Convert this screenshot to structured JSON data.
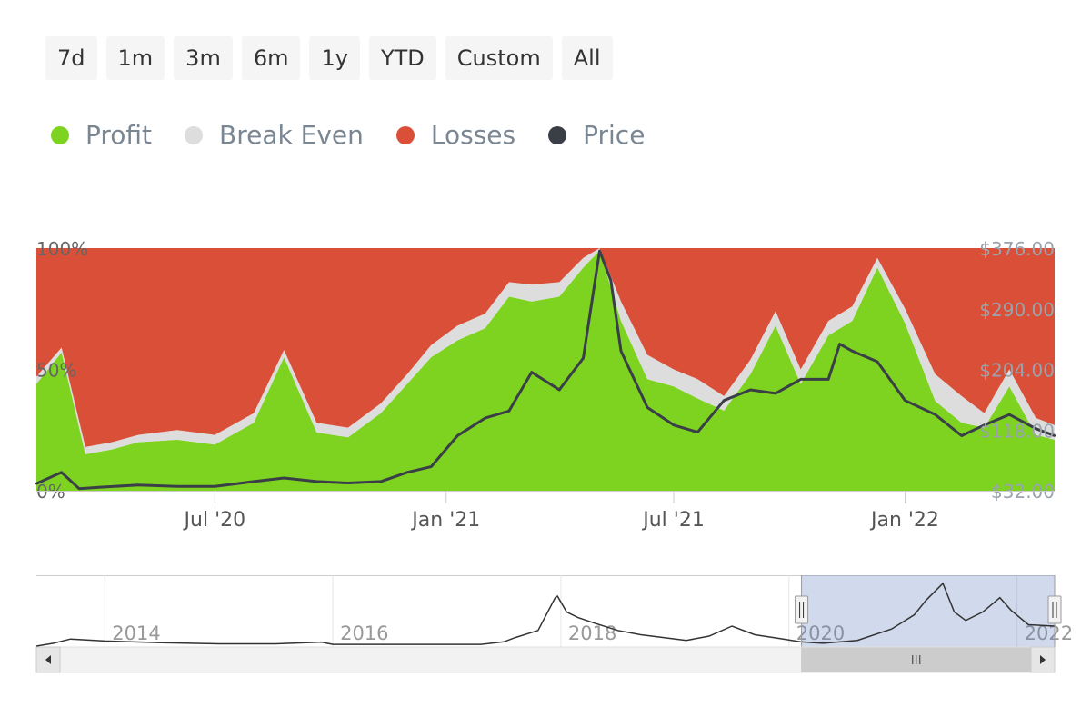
{
  "range_buttons": [
    "7d",
    "1m",
    "3m",
    "6m",
    "1y",
    "YTD",
    "Custom",
    "All"
  ],
  "legend": [
    {
      "label": "Profit",
      "color": "#7ed321"
    },
    {
      "label": "Break Even",
      "color": "#dddddd"
    },
    {
      "label": "Losses",
      "color": "#d94f38"
    },
    {
      "label": "Price",
      "color": "#3a3f47"
    }
  ],
  "chart_data": {
    "type": "area",
    "x_tick_labels": [
      "Jul '20",
      "Jan '21",
      "Jul '21",
      "Jan '22"
    ],
    "x_ticks": [
      "2020-07-01",
      "2021-01-01",
      "2021-07-01",
      "2022-01-01"
    ],
    "x_range": [
      "2020-02-10",
      "2022-04-30"
    ],
    "y_left_ticks": [
      "0%",
      "50%",
      "100%"
    ],
    "y_left_range": [
      0,
      100
    ],
    "y_right_ticks": [
      "$32.00",
      "$118.00",
      "$204.00",
      "$290.00",
      "$376.00"
    ],
    "y_right_range": [
      32,
      376
    ],
    "series": [
      {
        "name": "Profit",
        "color": "#7ed321",
        "unit": "%",
        "x": [
          "2020-02-10",
          "2020-03-01",
          "2020-03-20",
          "2020-04-10",
          "2020-05-01",
          "2020-06-01",
          "2020-07-01",
          "2020-08-01",
          "2020-08-25",
          "2020-09-20",
          "2020-10-15",
          "2020-11-10",
          "2020-12-01",
          "2020-12-20",
          "2021-01-10",
          "2021-02-01",
          "2021-02-20",
          "2021-03-10",
          "2021-04-01",
          "2021-04-20",
          "2021-05-03",
          "2021-05-20",
          "2021-06-10",
          "2021-07-01",
          "2021-07-20",
          "2021-08-10",
          "2021-08-31",
          "2021-09-20",
          "2021-10-10",
          "2021-11-01",
          "2021-11-20",
          "2021-12-10",
          "2022-01-01",
          "2022-01-25",
          "2022-02-15",
          "2022-03-05",
          "2022-03-25",
          "2022-04-15",
          "2022-04-30"
        ],
        "values": [
          44,
          57,
          15,
          17,
          20,
          21,
          19,
          28,
          55,
          24,
          22,
          32,
          44,
          55,
          62,
          67,
          80,
          78,
          80,
          92,
          99,
          70,
          46,
          43,
          38,
          33,
          48,
          68,
          44,
          64,
          70,
          92,
          69,
          37,
          28,
          26,
          43,
          23,
          21
        ]
      },
      {
        "name": "Break Even",
        "color": "#dddddd",
        "unit": "%",
        "x": [
          "2020-02-10",
          "2020-03-01",
          "2020-03-20",
          "2020-04-10",
          "2020-05-01",
          "2020-06-01",
          "2020-07-01",
          "2020-08-01",
          "2020-08-25",
          "2020-09-20",
          "2020-10-15",
          "2020-11-10",
          "2020-12-01",
          "2020-12-20",
          "2021-01-10",
          "2021-02-01",
          "2021-02-20",
          "2021-03-10",
          "2021-04-01",
          "2021-04-20",
          "2021-05-03",
          "2021-05-20",
          "2021-06-10",
          "2021-07-01",
          "2021-07-20",
          "2021-08-10",
          "2021-08-31",
          "2021-09-20",
          "2021-10-10",
          "2021-11-01",
          "2021-11-20",
          "2021-12-10",
          "2022-01-01",
          "2022-01-25",
          "2022-02-15",
          "2022-03-05",
          "2022-03-25",
          "2022-04-15",
          "2022-04-30"
        ],
        "values": [
          3,
          2,
          3,
          3,
          3,
          4,
          4,
          4,
          3,
          4,
          4,
          4,
          4,
          5,
          6,
          6,
          6,
          7,
          6,
          4,
          1,
          8,
          10,
          7,
          8,
          6,
          6,
          6,
          6,
          6,
          6,
          4,
          6,
          11,
          11,
          6,
          7,
          7,
          6
        ]
      },
      {
        "name": "Losses",
        "color": "#d94f38",
        "unit": "%",
        "x": [
          "2020-02-10",
          "2020-03-01",
          "2020-03-20",
          "2020-04-10",
          "2020-05-01",
          "2020-06-01",
          "2020-07-01",
          "2020-08-01",
          "2020-08-25",
          "2020-09-20",
          "2020-10-15",
          "2020-11-10",
          "2020-12-01",
          "2020-12-20",
          "2021-01-10",
          "2021-02-01",
          "2021-02-20",
          "2021-03-10",
          "2021-04-01",
          "2021-04-20",
          "2021-05-03",
          "2021-05-20",
          "2021-06-10",
          "2021-07-01",
          "2021-07-20",
          "2021-08-10",
          "2021-08-31",
          "2021-09-20",
          "2021-10-10",
          "2021-11-01",
          "2021-11-20",
          "2021-12-10",
          "2022-01-01",
          "2022-01-25",
          "2022-02-15",
          "2022-03-05",
          "2022-03-25",
          "2022-04-15",
          "2022-04-30"
        ],
        "values": [
          53,
          41,
          82,
          80,
          77,
          75,
          77,
          68,
          42,
          72,
          74,
          64,
          52,
          40,
          32,
          27,
          14,
          15,
          14,
          4,
          0,
          22,
          44,
          50,
          54,
          61,
          46,
          26,
          50,
          30,
          24,
          4,
          25,
          52,
          61,
          68,
          50,
          70,
          73
        ]
      },
      {
        "name": "Price",
        "color": "#3a3f47",
        "unit": "$",
        "x": [
          "2020-02-10",
          "2020-03-01",
          "2020-03-15",
          "2020-04-01",
          "2020-05-01",
          "2020-06-01",
          "2020-07-01",
          "2020-08-01",
          "2020-08-25",
          "2020-09-20",
          "2020-10-15",
          "2020-11-10",
          "2020-12-01",
          "2020-12-20",
          "2021-01-10",
          "2021-02-01",
          "2021-02-20",
          "2021-03-10",
          "2021-04-01",
          "2021-04-20",
          "2021-05-03",
          "2021-05-12",
          "2021-05-20",
          "2021-06-10",
          "2021-07-01",
          "2021-07-20",
          "2021-08-10",
          "2021-08-31",
          "2021-09-20",
          "2021-10-10",
          "2021-11-01",
          "2021-11-10",
          "2021-11-20",
          "2021-12-10",
          "2022-01-01",
          "2022-01-25",
          "2022-02-15",
          "2022-03-05",
          "2022-03-25",
          "2022-04-15",
          "2022-04-30"
        ],
        "values": [
          42,
          58,
          35,
          37,
          40,
          38,
          38,
          45,
          50,
          45,
          43,
          45,
          58,
          66,
          110,
          135,
          145,
          200,
          175,
          220,
          372,
          330,
          230,
          150,
          125,
          115,
          160,
          175,
          170,
          190,
          190,
          240,
          230,
          215,
          160,
          140,
          110,
          125,
          140,
          120,
          110
        ]
      }
    ]
  },
  "navigator": {
    "year_labels": [
      "2014",
      "2016",
      "2018",
      "2020",
      "2022"
    ],
    "years": [
      2014,
      2016,
      2018,
      2020,
      2022
    ],
    "x_range": [
      2013.4,
      2022.33
    ],
    "selection": [
      2020.11,
      2022.33
    ],
    "price_series": {
      "x": [
        2013.4,
        2013.55,
        2013.7,
        2014.0,
        2014.5,
        2015.0,
        2015.5,
        2015.9,
        2016.0,
        2016.5,
        2017.0,
        2017.3,
        2017.5,
        2017.6,
        2017.8,
        2017.95,
        2017.97,
        2018.05,
        2018.15,
        2018.3,
        2018.5,
        2018.7,
        2018.9,
        2019.1,
        2019.3,
        2019.5,
        2019.7,
        2019.95,
        2020.1,
        2020.3,
        2020.6,
        2020.9,
        2021.1,
        2021.2,
        2021.35,
        2021.45,
        2021.55,
        2021.7,
        2021.85,
        2021.95,
        2022.1,
        2022.33
      ],
      "values": [
        0,
        10,
        25,
        18,
        12,
        8,
        8,
        14,
        6,
        6,
        6,
        6,
        15,
        30,
        55,
        170,
        175,
        120,
        100,
        80,
        55,
        40,
        30,
        20,
        35,
        70,
        40,
        25,
        15,
        10,
        20,
        60,
        110,
        160,
        220,
        120,
        90,
        120,
        170,
        125,
        75,
        70
      ]
    }
  }
}
